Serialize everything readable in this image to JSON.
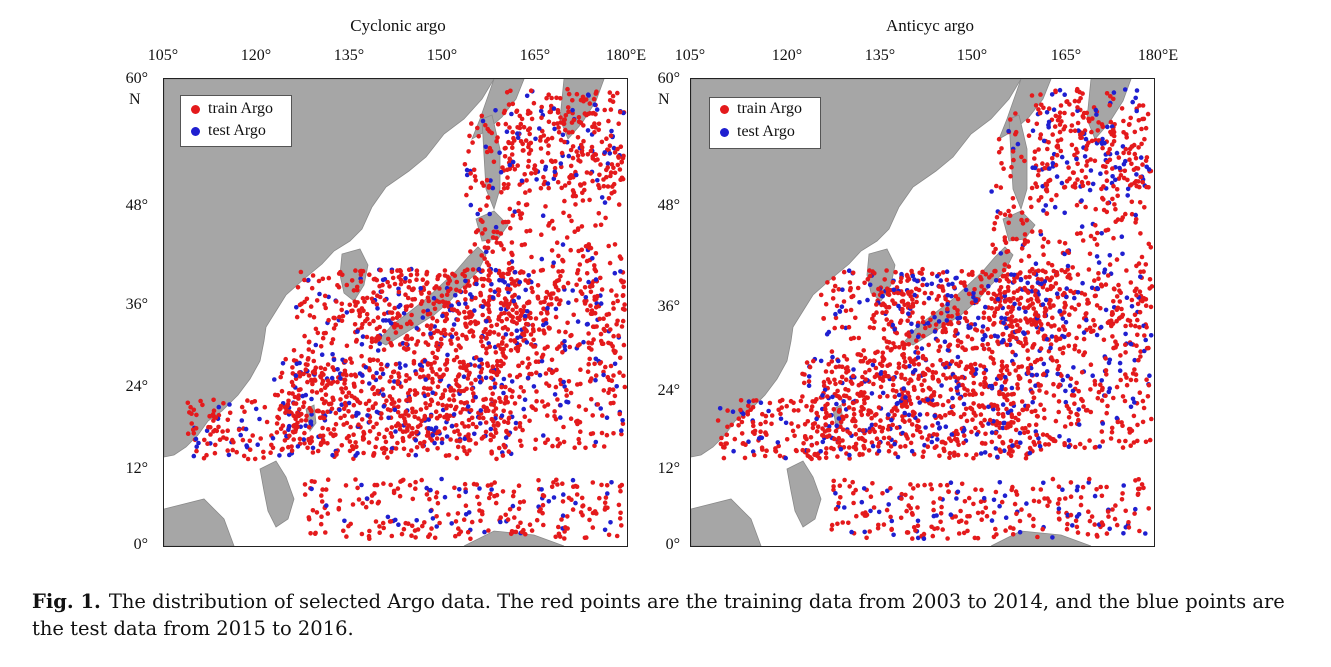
{
  "panels": [
    {
      "title": "Cyclonic argo",
      "lon_ticks": [
        "105°",
        "120°",
        "135°",
        "150°",
        "165°",
        "180°E"
      ],
      "lat_ticks": [
        "60°",
        "48°",
        "36°",
        "24°",
        "12°",
        "0°"
      ],
      "lat_hemisphere": "N",
      "legend": [
        {
          "label": "train Argo",
          "color": "#e41a1c"
        },
        {
          "label": "test Argo",
          "color": "#1f1fd0"
        }
      ]
    },
    {
      "title": "Anticyc argo",
      "lon_ticks": [
        "105°",
        "120°",
        "135°",
        "150°",
        "165°",
        "180°E"
      ],
      "lat_ticks": [
        "60°",
        "48°",
        "36°",
        "24°",
        "12°",
        "0°"
      ],
      "lat_hemisphere": "N",
      "legend": [
        {
          "label": "train Argo",
          "color": "#e41a1c"
        },
        {
          "label": "test Argo",
          "color": "#1f1fd0"
        }
      ]
    }
  ],
  "colors": {
    "land": "#a6a6a6",
    "ocean": "#ffffff",
    "train": "#e41a1c",
    "test": "#1f1fd0"
  },
  "caption": {
    "label": "Fig. 1.",
    "text": "The distribution of selected Argo data. The red points are the training data from 2003 to 2014, and the blue points are the test data from 2015 to 2016."
  }
}
